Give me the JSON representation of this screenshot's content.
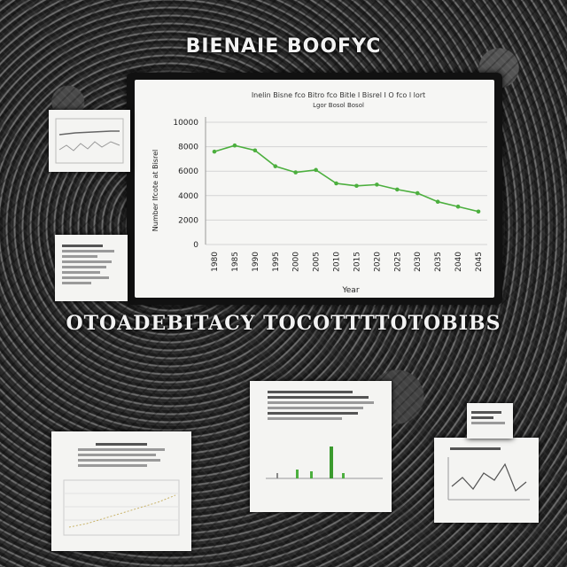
{
  "headlines": {
    "top": "BIENAIE BOOFYC",
    "middle": "OTOADEBITACY TOCOTTTTOTOBIBS"
  },
  "chart_data": {
    "type": "line",
    "title": "Inelin Bisne fco Bitro fco Bitle I Bisrel I O fco l lort",
    "subtitle": "Lgor Bosol Bosol",
    "xlabel": "Year",
    "ylabel": "Number Ifcote at Bisrel",
    "ytick_labels": [
      "0",
      "2000",
      "4000",
      "6000",
      "8000",
      "10000"
    ],
    "ylim": [
      0,
      10000
    ],
    "categories": [
      "1980",
      "1985",
      "1990",
      "1995",
      "2000",
      "2005",
      "2010",
      "2015",
      "2020",
      "2025",
      "2030",
      "2035",
      "2040",
      "2045"
    ],
    "series": [
      {
        "values": [
          7600,
          8100,
          7700,
          6400,
          5900,
          6100,
          5000,
          4800,
          4900,
          4500,
          4200,
          3500,
          3100,
          2700
        ],
        "color": "#4caf3e"
      }
    ],
    "grid": true,
    "legend": "none"
  },
  "colors": {
    "line": "#4caf3e",
    "grid": "#d4d4d4",
    "text": "#222222"
  }
}
